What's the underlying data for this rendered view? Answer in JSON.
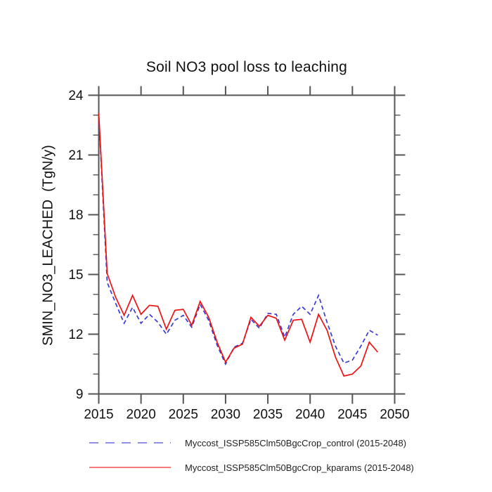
{
  "chart_data": {
    "type": "line",
    "title": "Soil NO3 pool loss to leaching",
    "xlabel": "",
    "ylabel": "SMIN_NO3_LEACHED  (TgN/y)",
    "grid": "off",
    "legend_position": "bottom",
    "axis_color": "#555555",
    "xlim": [
      2015,
      2050
    ],
    "ylim": [
      9,
      24
    ],
    "x_major_ticks": [
      2015,
      2020,
      2025,
      2030,
      2035,
      2040,
      2045,
      2050
    ],
    "y_major_ticks": [
      9,
      12,
      15,
      18,
      21,
      24
    ],
    "y_minor_step": 1,
    "x": [
      2015,
      2016,
      2017,
      2018,
      2019,
      2020,
      2021,
      2022,
      2023,
      2024,
      2025,
      2026,
      2027,
      2028,
      2029,
      2030,
      2031,
      2032,
      2033,
      2034,
      2035,
      2036,
      2037,
      2038,
      2039,
      2040,
      2041,
      2042,
      2043,
      2044,
      2045,
      2046,
      2047,
      2048
    ],
    "series": [
      {
        "name": "control",
        "label": "Myccost_ISSP585Clm50BgcCrop_control (2015-2048)",
        "color": "#3a3ad6",
        "style": "dashed",
        "values": [
          23.0,
          14.6,
          13.55,
          12.55,
          13.35,
          12.55,
          13.0,
          12.6,
          12.0,
          12.7,
          12.95,
          12.35,
          13.5,
          12.7,
          11.45,
          10.5,
          11.35,
          11.55,
          12.75,
          12.3,
          13.05,
          13.0,
          11.85,
          13.0,
          13.4,
          13.0,
          13.95,
          12.6,
          11.4,
          10.55,
          10.7,
          11.4,
          12.2,
          11.95
        ]
      },
      {
        "name": "kparams",
        "label": "Myccost_ISSP585Clm50BgcCrop_kparams (2015-2048)",
        "color": "#ee1111",
        "style": "solid",
        "values": [
          23.1,
          15.05,
          13.85,
          12.95,
          13.95,
          13.0,
          13.45,
          13.4,
          12.25,
          13.2,
          13.25,
          12.45,
          13.65,
          12.85,
          11.6,
          10.6,
          11.3,
          11.5,
          12.85,
          12.4,
          12.95,
          12.8,
          11.7,
          12.7,
          12.75,
          11.6,
          13.0,
          12.2,
          10.85,
          9.9,
          10.0,
          10.4,
          11.6,
          11.1
        ]
      }
    ]
  }
}
